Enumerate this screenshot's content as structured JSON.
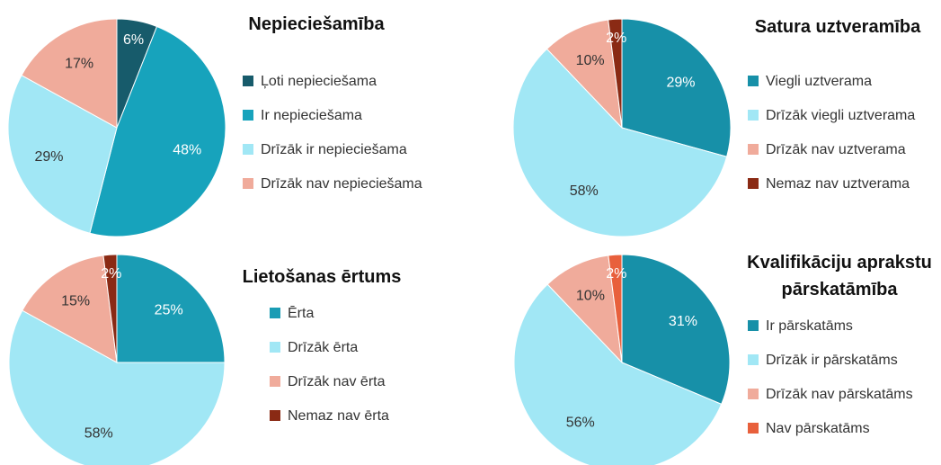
{
  "chart_data": [
    {
      "type": "pie",
      "title": "Nepieciešamība",
      "categories": [
        "Ļoti nepieciešama",
        "Ir nepieciešama",
        "Drīzāk ir nepieciešama",
        "Drīzāk nav nepieciešama"
      ],
      "values": [
        6,
        48,
        29,
        17
      ],
      "value_labels": [
        "6%",
        "48%",
        "29%",
        "17%"
      ],
      "colors": [
        "#175b6b",
        "#17a3bc",
        "#a1e7f5",
        "#f0ab9b"
      ]
    },
    {
      "type": "pie",
      "title": "Satura uztveramība",
      "categories": [
        "Viegli uztverama",
        "Drīzāk viegli uztverama",
        "Drīzāk nav uztverama",
        "Nemaz nav uztverama"
      ],
      "values": [
        29,
        58,
        10,
        2
      ],
      "value_labels": [
        "29%",
        "58%",
        "10%",
        "2%"
      ],
      "colors": [
        "#1790a8",
        "#a1e7f5",
        "#f0ab9b",
        "#8a2a14"
      ]
    },
    {
      "type": "pie",
      "title": "Lietošanas ērtums",
      "categories": [
        "Ērta",
        "Drīzāk ērta",
        "Drīzāk nav ērta",
        "Nemaz nav ērta"
      ],
      "values": [
        25,
        58,
        15,
        2
      ],
      "value_labels": [
        "25%",
        "58%",
        "15%",
        "2%"
      ],
      "colors": [
        "#1a9cb4",
        "#a1e7f5",
        "#f0ab9b",
        "#8a2a14"
      ]
    },
    {
      "type": "pie",
      "title": "Kvalifikāciju aprakstu pārskatāmība",
      "categories": [
        "Ir pārskatāms",
        "Drīzāk ir pārskatāms",
        "Drīzāk nav pārskatāms",
        "Nav pārskatāms"
      ],
      "values": [
        31,
        56,
        10,
        2
      ],
      "value_labels": [
        "31%",
        "56%",
        "10%",
        "2%"
      ],
      "colors": [
        "#1790a8",
        "#a1e7f5",
        "#f0ab9b",
        "#e8603c"
      ]
    }
  ]
}
